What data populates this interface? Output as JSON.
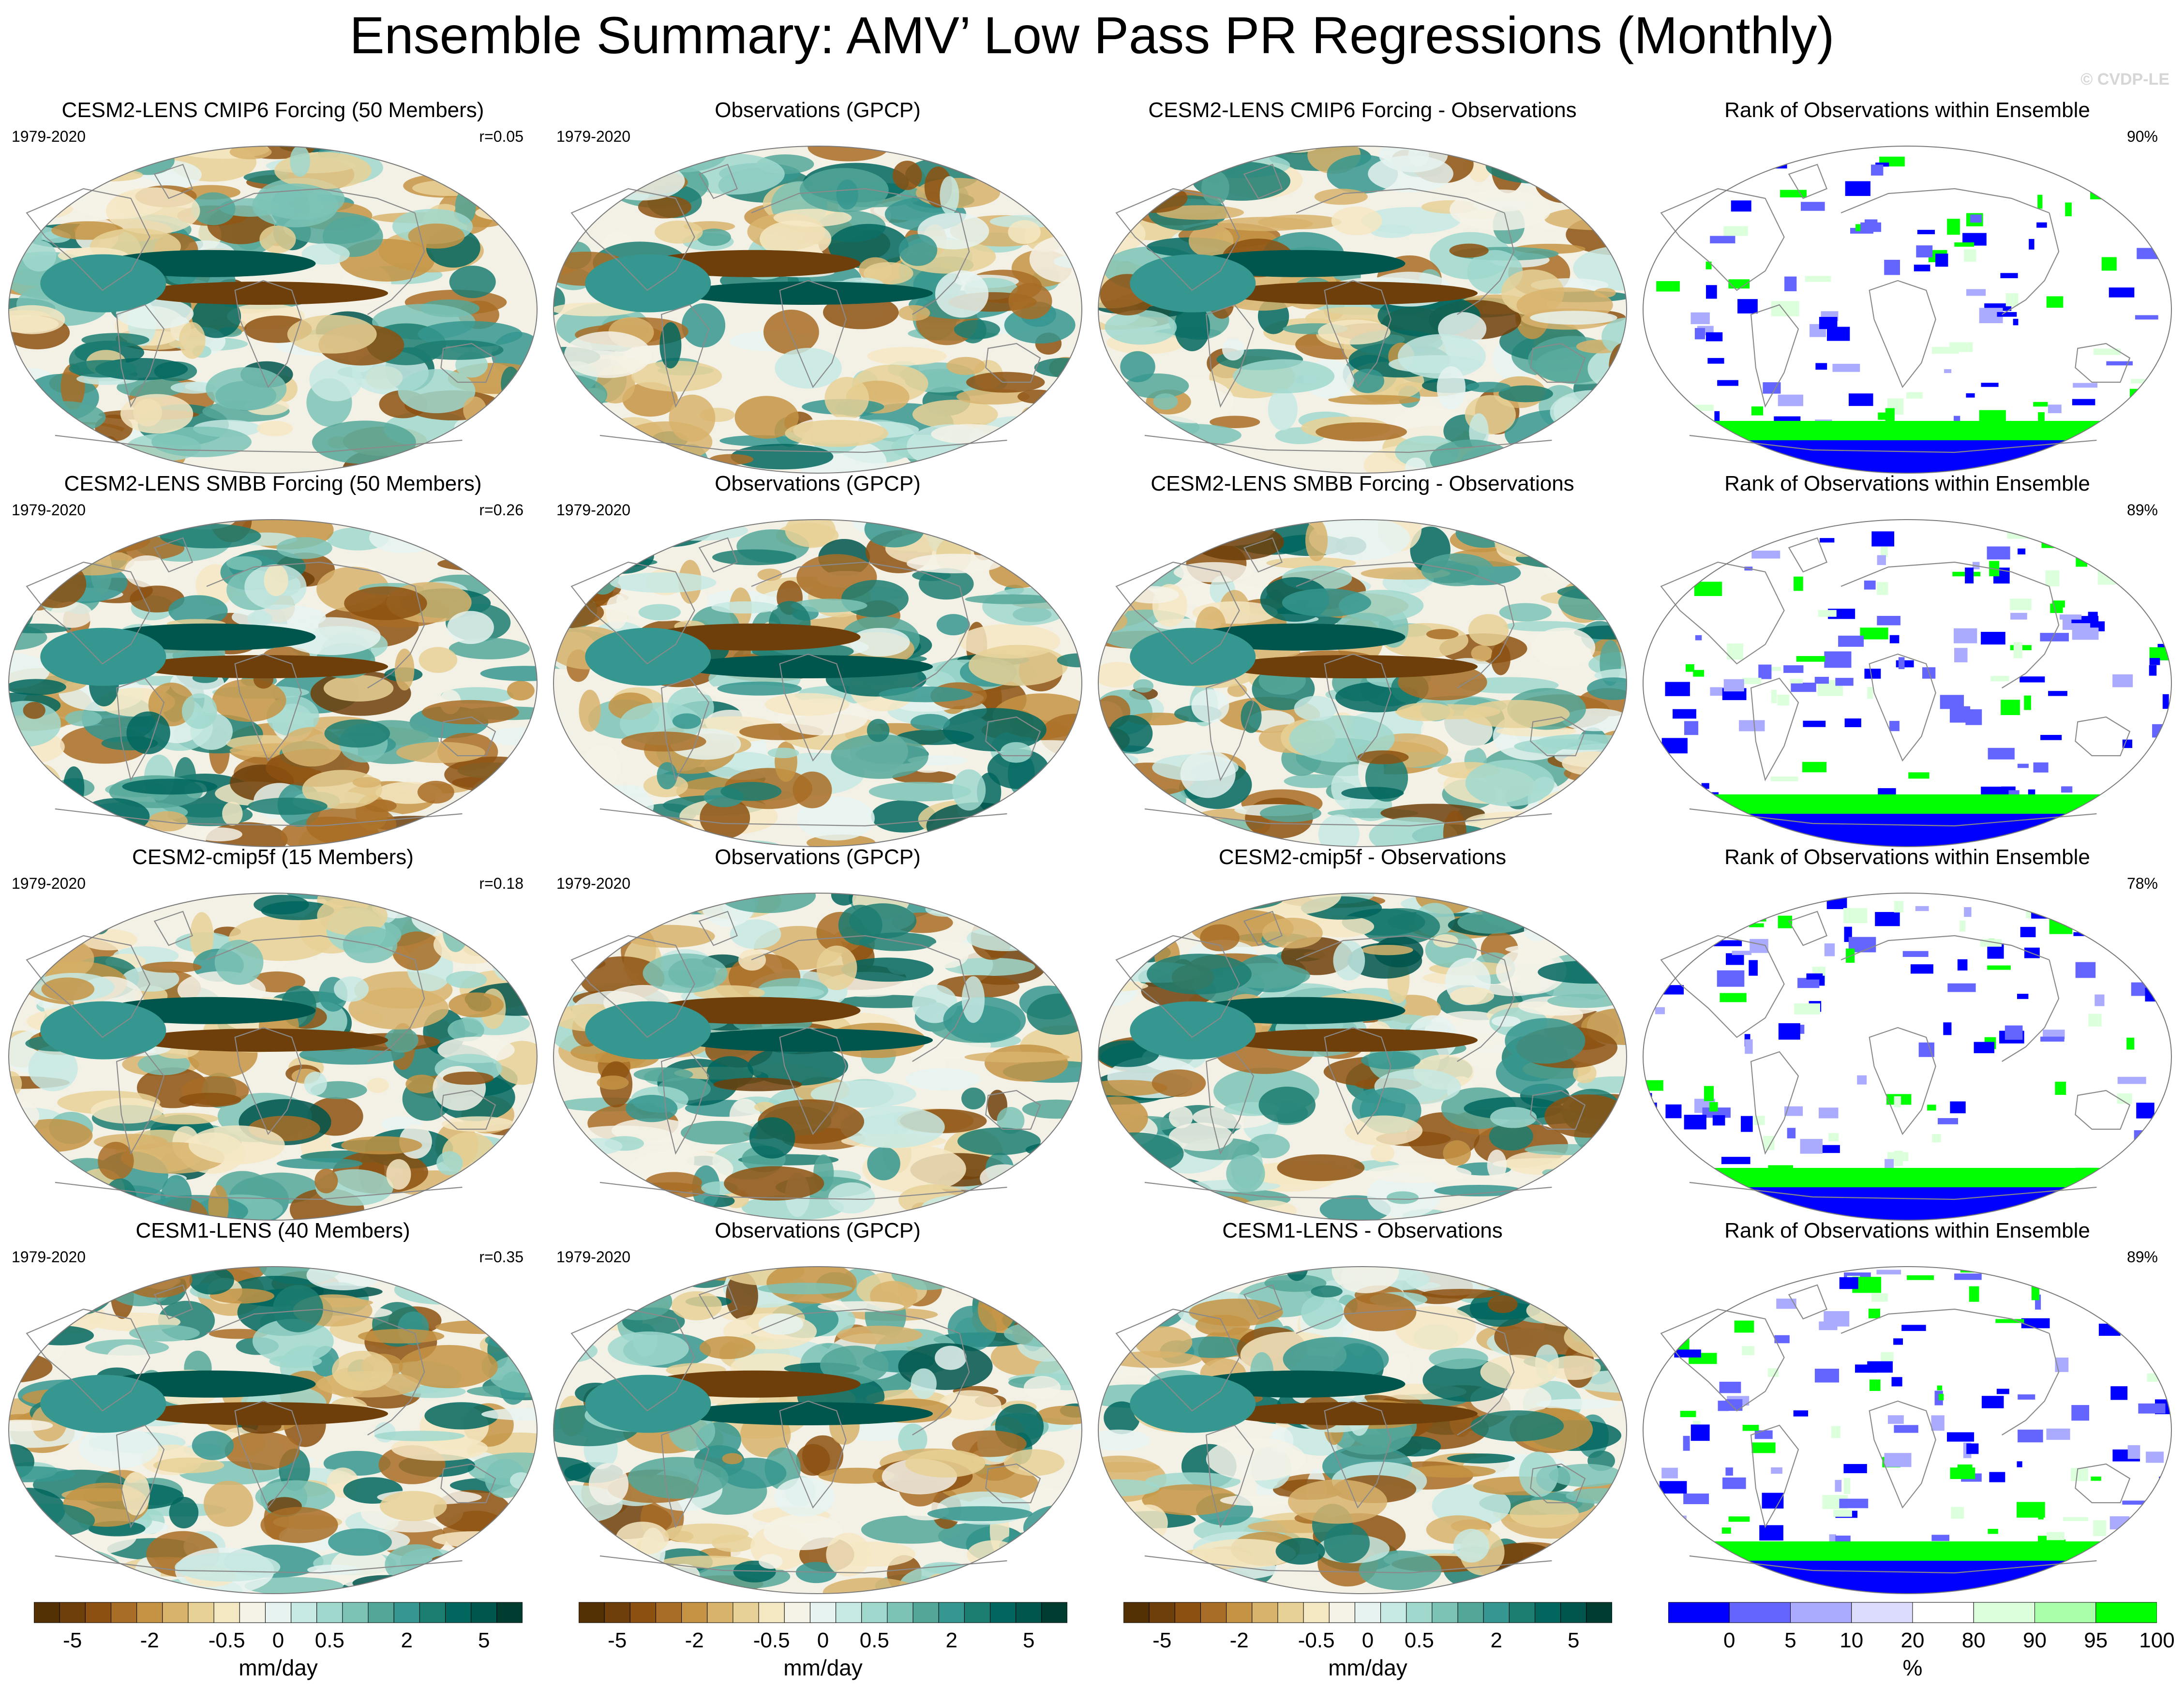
{
  "title": "Ensemble Summary: AMV’ Low Pass PR Regressions (Monthly)",
  "watermark": "© CVDP-LE",
  "chart_data": {
    "type": "heatmap",
    "rows": [
      {
        "model": {
          "title": "CESM2-LENS CMIP6 Forcing (50 Members)",
          "years": "1979-2020",
          "stat": "r=0.05"
        },
        "obs": {
          "title": "Observations (GPCP)",
          "years": "1979-2020"
        },
        "diff": {
          "title": "CESM2-LENS CMIP6 Forcing - Observations"
        },
        "rank": {
          "title": "Rank of Observations within Ensemble",
          "stat": "90%"
        }
      },
      {
        "model": {
          "title": "CESM2-LENS SMBB Forcing (50 Members)",
          "years": "1979-2020",
          "stat": "r=0.26"
        },
        "obs": {
          "title": "Observations (GPCP)",
          "years": "1979-2020"
        },
        "diff": {
          "title": "CESM2-LENS SMBB Forcing - Observations"
        },
        "rank": {
          "title": "Rank of Observations within Ensemble",
          "stat": "89%"
        }
      },
      {
        "model": {
          "title": "CESM2-cmip5f (15 Members)",
          "years": "1979-2020",
          "stat": "r=0.18"
        },
        "obs": {
          "title": "Observations (GPCP)",
          "years": "1979-2020"
        },
        "diff": {
          "title": "CESM2-cmip5f - Observations"
        },
        "rank": {
          "title": "Rank of Observations within Ensemble",
          "stat": "78%"
        }
      },
      {
        "model": {
          "title": "CESM1-LENS (40 Members)",
          "years": "1979-2020",
          "stat": "r=0.35"
        },
        "obs": {
          "title": "Observations (GPCP)",
          "years": "1979-2020"
        },
        "diff": {
          "title": "CESM1-LENS - Observations"
        },
        "rank": {
          "title": "Rank of Observations within Ensemble",
          "stat": "89%"
        }
      }
    ],
    "pr_colorbar": {
      "units": "mm/day",
      "labels": [
        "-5",
        "-2",
        "-0.5",
        "0",
        "0.5",
        "2",
        "5"
      ],
      "colors": [
        "#543005",
        "#6e3f0b",
        "#8c5110",
        "#a86d26",
        "#c49444",
        "#d8b36c",
        "#e8d197",
        "#f4e8c3",
        "#f5f2e8",
        "#e6f3f0",
        "#c7e9e3",
        "#a0d8ce",
        "#7cc3b6",
        "#53a799",
        "#35978f",
        "#1c7d71",
        "#01665e",
        "#00554c",
        "#003c30"
      ]
    },
    "rank_colorbar": {
      "units": "%",
      "labels": [
        "0",
        "5",
        "10",
        "20",
        "80",
        "90",
        "95",
        "100"
      ],
      "colors": [
        "#0000ff",
        "#6464ff",
        "#aaaaff",
        "#dcdcff",
        "#ffffff",
        "#dcffdc",
        "#aaffaa",
        "#00ff00"
      ]
    }
  }
}
